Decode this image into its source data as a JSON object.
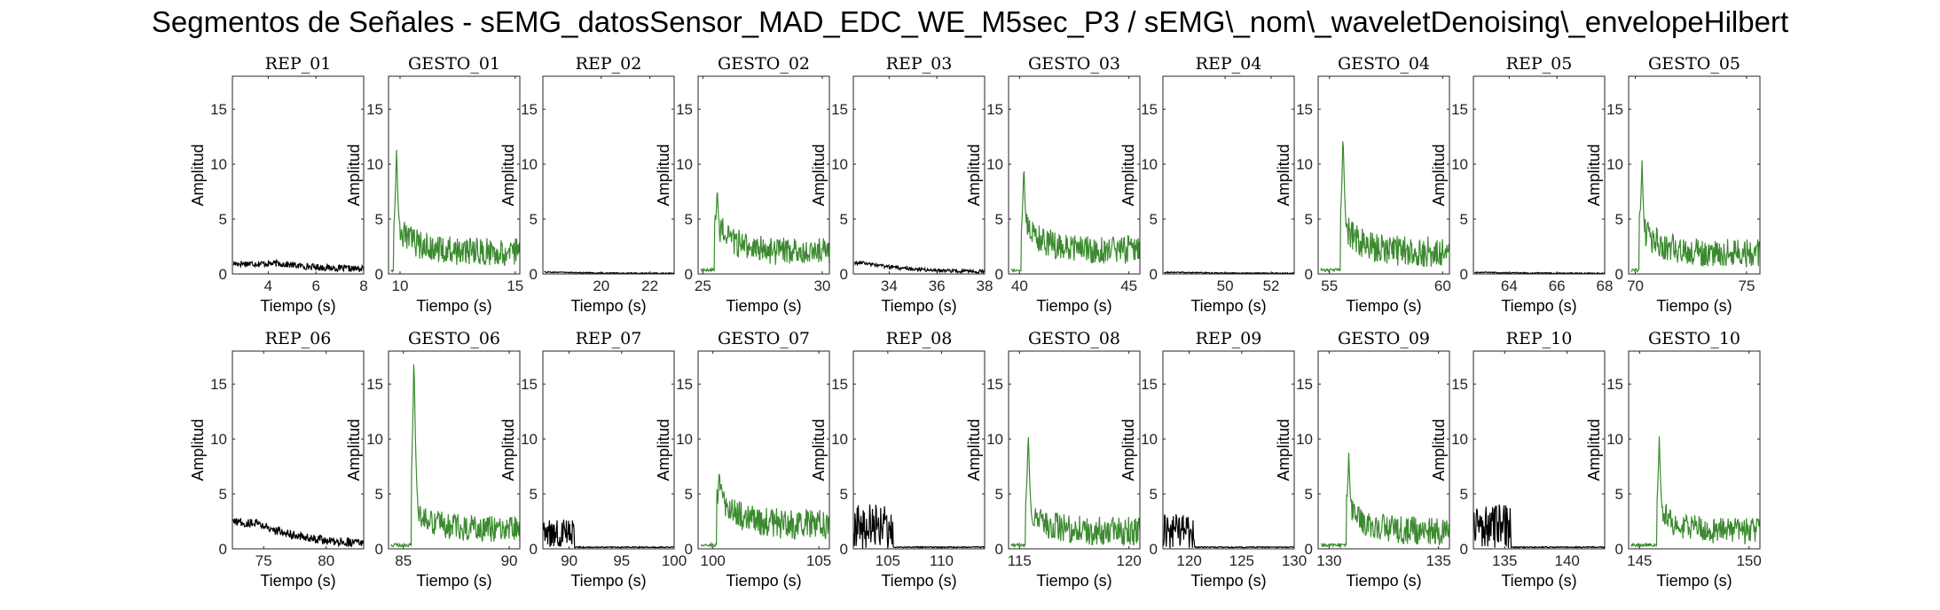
{
  "figure": {
    "title": "Segmentos de Señales - sEMG_datosSensor_MAD_EDC_WE_M5sec_P3 / sEMG\\_nom\\_waveletDenoising\\_envelopeHilbert"
  },
  "colors": {
    "rep": "#000000",
    "gesto": "#3b8a2f",
    "axis": "#262626"
  },
  "chart_data": [
    {
      "type": "line",
      "title": "REP_01",
      "xlabel": "Tiempo (s)",
      "ylabel": "Amplitud",
      "xlim": [
        2.5,
        8
      ],
      "ylim": [
        0,
        18
      ],
      "xticks": [
        4,
        6,
        8
      ],
      "yticks": [
        0,
        5,
        10,
        15
      ],
      "series": [
        {
          "kind": "rep",
          "peak": 1.0,
          "peak_x": 4.5,
          "base": 0.35,
          "noise": 0.3
        }
      ]
    },
    {
      "type": "line",
      "title": "GESTO_01",
      "xlabel": "Tiempo (s)",
      "ylabel": "Amplitud",
      "xlim": [
        9.5,
        15.2
      ],
      "ylim": [
        0,
        18
      ],
      "xticks": [
        10,
        15
      ],
      "yticks": [
        0,
        5,
        10,
        15
      ],
      "series": [
        {
          "kind": "gesto",
          "peak": 11.5,
          "peak_x": 9.85,
          "base": 2.0,
          "noise": 1.3
        }
      ]
    },
    {
      "type": "line",
      "title": "REP_02",
      "xlabel": "Tiempo (s)",
      "ylabel": "Amplitud",
      "xlim": [
        17.6,
        23
      ],
      "ylim": [
        0,
        18
      ],
      "xticks": [
        20,
        22
      ],
      "yticks": [
        0,
        5,
        10,
        15
      ],
      "series": [
        {
          "kind": "rep",
          "peak": 0.2,
          "peak_x": 18,
          "base": 0.05,
          "noise": 0.05
        }
      ]
    },
    {
      "type": "line",
      "title": "GESTO_02",
      "xlabel": "Tiempo (s)",
      "ylabel": "Amplitud",
      "xlim": [
        24.8,
        30.3
      ],
      "ylim": [
        0,
        18
      ],
      "xticks": [
        25,
        30
      ],
      "yticks": [
        0,
        5,
        10,
        15
      ],
      "series": [
        {
          "kind": "gesto",
          "peak": 8.0,
          "peak_x": 25.6,
          "base": 2.0,
          "noise": 1.3
        }
      ]
    },
    {
      "type": "line",
      "title": "REP_03",
      "xlabel": "Tiempo (s)",
      "ylabel": "Amplitud",
      "xlim": [
        32.5,
        38
      ],
      "ylim": [
        0,
        18
      ],
      "xticks": [
        34,
        36,
        38
      ],
      "yticks": [
        0,
        5,
        10,
        15
      ],
      "series": [
        {
          "kind": "rep",
          "peak": 1.4,
          "peak_x": 33.0,
          "base": 0.15,
          "noise": 0.15
        }
      ]
    },
    {
      "type": "line",
      "title": "GESTO_03",
      "xlabel": "Tiempo (s)",
      "ylabel": "Amplitud",
      "xlim": [
        39.5,
        45.5
      ],
      "ylim": [
        0,
        18
      ],
      "xticks": [
        40,
        45
      ],
      "yticks": [
        0,
        5,
        10,
        15
      ],
      "series": [
        {
          "kind": "gesto",
          "peak": 10.2,
          "peak_x": 40.2,
          "base": 2.2,
          "noise": 1.3
        }
      ]
    },
    {
      "type": "line",
      "title": "REP_04",
      "xlabel": "Tiempo (s)",
      "ylabel": "Amplitud",
      "xlim": [
        47.3,
        53
      ],
      "ylim": [
        0,
        18
      ],
      "xticks": [
        50,
        52
      ],
      "yticks": [
        0,
        5,
        10,
        15
      ],
      "series": [
        {
          "kind": "rep",
          "peak": 0.15,
          "peak_x": 48,
          "base": 0.05,
          "noise": 0.05
        }
      ]
    },
    {
      "type": "line",
      "title": "GESTO_04",
      "xlabel": "Tiempo (s)",
      "ylabel": "Amplitud",
      "xlim": [
        54.5,
        60.3
      ],
      "ylim": [
        0,
        18
      ],
      "xticks": [
        55,
        60
      ],
      "yticks": [
        0,
        5,
        10,
        15
      ],
      "series": [
        {
          "kind": "gesto",
          "peak": 13.0,
          "peak_x": 55.6,
          "base": 2.0,
          "noise": 1.4
        }
      ]
    },
    {
      "type": "line",
      "title": "REP_05",
      "xlabel": "Tiempo (s)",
      "ylabel": "Amplitud",
      "xlim": [
        62.5,
        68
      ],
      "ylim": [
        0,
        18
      ],
      "xticks": [
        64,
        66,
        68
      ],
      "yticks": [
        0,
        5,
        10,
        15
      ],
      "series": [
        {
          "kind": "rep",
          "peak": 0.15,
          "peak_x": 63,
          "base": 0.05,
          "noise": 0.05
        }
      ]
    },
    {
      "type": "line",
      "title": "GESTO_05",
      "xlabel": "Tiempo (s)",
      "ylabel": "Amplitud",
      "xlim": [
        69.7,
        75.6
      ],
      "ylim": [
        0,
        18
      ],
      "xticks": [
        70,
        75
      ],
      "yticks": [
        0,
        5,
        10,
        15
      ],
      "series": [
        {
          "kind": "gesto",
          "peak": 10.5,
          "peak_x": 70.3,
          "base": 1.9,
          "noise": 1.3
        }
      ]
    },
    {
      "type": "line",
      "title": "REP_06",
      "xlabel": "Tiempo (s)",
      "ylabel": "Amplitud",
      "xlim": [
        72.5,
        83
      ],
      "ylim": [
        0,
        18
      ],
      "xticks": [
        75,
        80
      ],
      "yticks": [
        0,
        5,
        10,
        15
      ],
      "series": [
        {
          "kind": "rep",
          "peak": 3.5,
          "peak_x": 74.5,
          "base": 0.3,
          "noise": 0.4
        }
      ]
    },
    {
      "type": "line",
      "title": "GESTO_06",
      "xlabel": "Tiempo (s)",
      "ylabel": "Amplitud",
      "xlim": [
        84.3,
        90.5
      ],
      "ylim": [
        0,
        18
      ],
      "xticks": [
        85,
        90
      ],
      "yticks": [
        0,
        5,
        10,
        15
      ],
      "series": [
        {
          "kind": "gesto",
          "peak": 18.0,
          "peak_x": 85.5,
          "base": 1.8,
          "noise": 1.2
        }
      ]
    },
    {
      "type": "line",
      "title": "REP_07",
      "xlabel": "Tiempo (s)",
      "ylabel": "Amplitud",
      "xlim": [
        87.5,
        100
      ],
      "ylim": [
        0,
        18
      ],
      "xticks": [
        90,
        95,
        100
      ],
      "yticks": [
        0,
        5,
        10,
        15
      ],
      "series": [
        {
          "kind": "rep",
          "peak": 3.0,
          "peak_x": 88.5,
          "base": 0.1,
          "noise": 0.1,
          "burst_end": 90.5
        }
      ]
    },
    {
      "type": "line",
      "title": "GESTO_07",
      "xlabel": "Tiempo (s)",
      "ylabel": "Amplitud",
      "xlim": [
        99.3,
        105.5
      ],
      "ylim": [
        0,
        18
      ],
      "xticks": [
        100,
        105
      ],
      "yticks": [
        0,
        5,
        10,
        15
      ],
      "series": [
        {
          "kind": "gesto",
          "peak": 7.5,
          "peak_x": 100.3,
          "base": 2.2,
          "noise": 1.4
        }
      ]
    },
    {
      "type": "line",
      "title": "REP_08",
      "xlabel": "Tiempo (s)",
      "ylabel": "Amplitud",
      "xlim": [
        101.8,
        114
      ],
      "ylim": [
        0,
        18
      ],
      "xticks": [
        105,
        110
      ],
      "yticks": [
        0,
        5,
        10,
        15
      ],
      "series": [
        {
          "kind": "rep",
          "peak": 4.5,
          "peak_x": 103.5,
          "base": 0.1,
          "noise": 0.1,
          "burst_end": 105.5
        }
      ]
    },
    {
      "type": "line",
      "title": "GESTO_08",
      "xlabel": "Tiempo (s)",
      "ylabel": "Amplitud",
      "xlim": [
        114.5,
        120.5
      ],
      "ylim": [
        0,
        18
      ],
      "xticks": [
        115,
        120
      ],
      "yticks": [
        0,
        5,
        10,
        15
      ],
      "series": [
        {
          "kind": "gesto",
          "peak": 10.8,
          "peak_x": 115.4,
          "base": 1.6,
          "noise": 1.3
        }
      ]
    },
    {
      "type": "line",
      "title": "REP_09",
      "xlabel": "Tiempo (s)",
      "ylabel": "Amplitud",
      "xlim": [
        117.5,
        130
      ],
      "ylim": [
        0,
        18
      ],
      "xticks": [
        120,
        125,
        130
      ],
      "yticks": [
        0,
        5,
        10,
        15
      ],
      "series": [
        {
          "kind": "rep",
          "peak": 3.5,
          "peak_x": 119.8,
          "base": 0.1,
          "noise": 0.1,
          "burst_end": 120.5
        }
      ]
    },
    {
      "type": "line",
      "title": "GESTO_09",
      "xlabel": "Tiempo (s)",
      "ylabel": "Amplitud",
      "xlim": [
        129.5,
        135.5
      ],
      "ylim": [
        0,
        18
      ],
      "xticks": [
        130,
        135
      ],
      "yticks": [
        0,
        5,
        10,
        15
      ],
      "series": [
        {
          "kind": "gesto",
          "peak": 8.8,
          "peak_x": 130.9,
          "base": 1.6,
          "noise": 1.3
        }
      ]
    },
    {
      "type": "line",
      "title": "REP_10",
      "xlabel": "Tiempo (s)",
      "ylabel": "Amplitud",
      "xlim": [
        132.5,
        143
      ],
      "ylim": [
        0,
        18
      ],
      "xticks": [
        135,
        140
      ],
      "yticks": [
        0,
        5,
        10,
        15
      ],
      "series": [
        {
          "kind": "rep",
          "peak": 4.5,
          "peak_x": 133.3,
          "base": 0.1,
          "noise": 0.1,
          "burst_end": 135.5
        }
      ]
    },
    {
      "type": "line",
      "title": "GESTO_10",
      "xlabel": "Tiempo (s)",
      "ylabel": "Amplitud",
      "xlim": [
        144.5,
        150.5
      ],
      "ylim": [
        0,
        18
      ],
      "xticks": [
        145,
        150
      ],
      "yticks": [
        0,
        5,
        10,
        15
      ],
      "series": [
        {
          "kind": "gesto",
          "peak": 10.3,
          "peak_x": 145.9,
          "base": 1.6,
          "noise": 1.2
        }
      ]
    }
  ]
}
